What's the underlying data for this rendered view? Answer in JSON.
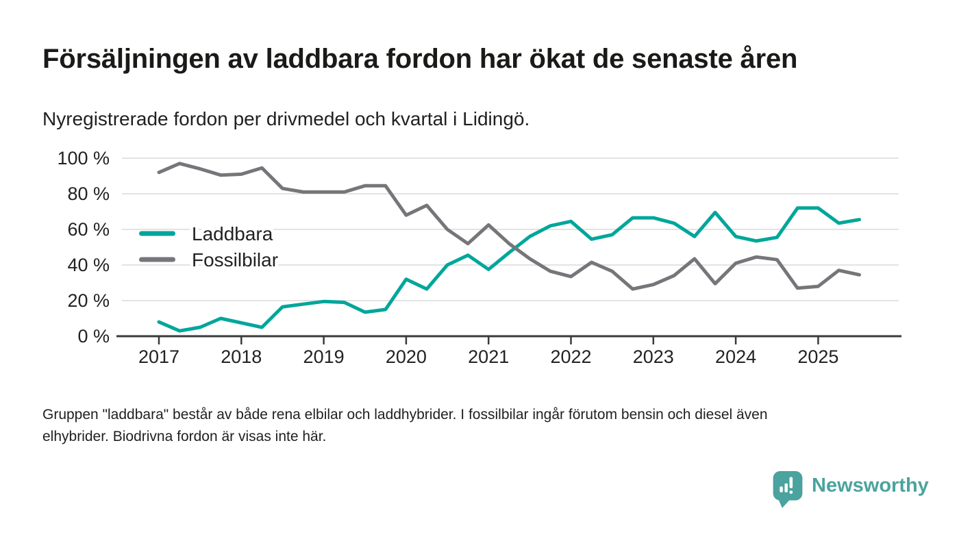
{
  "header": {
    "title": "Försäljningen av laddbara fordon har ökat de senaste åren",
    "subtitle": "Nyregistrerade fordon per drivmedel och kvartal i Lidingö."
  },
  "chart_data": {
    "type": "line",
    "x_unit": "quarter",
    "x_range": [
      "2017 Q1",
      "2025 Q3"
    ],
    "x_tick_labels": [
      "2017",
      "2018",
      "2019",
      "2020",
      "2021",
      "2022",
      "2023",
      "2024",
      "2025"
    ],
    "y_tick_labels": [
      "0 %",
      "20 %",
      "40 %",
      "60 %",
      "80 %",
      "100 %"
    ],
    "ylim": [
      0,
      100
    ],
    "grid": true,
    "legend_position": "inside-left",
    "series": [
      {
        "name": "Laddbara",
        "color": "#00a69b",
        "values": [
          8,
          3,
          5,
          10,
          7.5,
          5,
          16.5,
          18,
          19.5,
          19,
          13.5,
          15,
          32,
          26.5,
          40,
          45.5,
          37.5,
          47,
          56,
          62,
          64.5,
          54.5,
          57,
          66.5,
          66.5,
          63.5,
          56,
          69.5,
          56,
          53.5,
          55.5,
          72,
          72,
          63.5,
          65.5
        ]
      },
      {
        "name": "Fossilbilar",
        "color": "#76767a",
        "values": [
          92,
          97,
          94,
          90.5,
          91,
          94.5,
          83,
          81,
          81,
          81,
          84.5,
          84.5,
          68,
          73.5,
          60,
          52,
          62.5,
          52,
          43.5,
          36.5,
          33.5,
          41.5,
          36.5,
          26.5,
          29,
          34,
          43.5,
          29.5,
          41,
          44.5,
          43,
          27,
          28,
          37,
          34.5
        ]
      }
    ],
    "axis_color": "#3a3a3a",
    "grid_color": "#e3e3e3"
  },
  "footnote": {
    "line1": "Gruppen \"laddbara\" består av både rena elbilar och laddhybrider. I fossilbilar ingår förutom bensin och diesel även",
    "line2": "elhybrider. Biodrivna fordon är visas inte här."
  },
  "branding": {
    "logo_text": "Newsworthy",
    "logo_color": "#4aa39e",
    "logo_icon": "newsworthy-speech-bubble-bar-chart-icon"
  }
}
